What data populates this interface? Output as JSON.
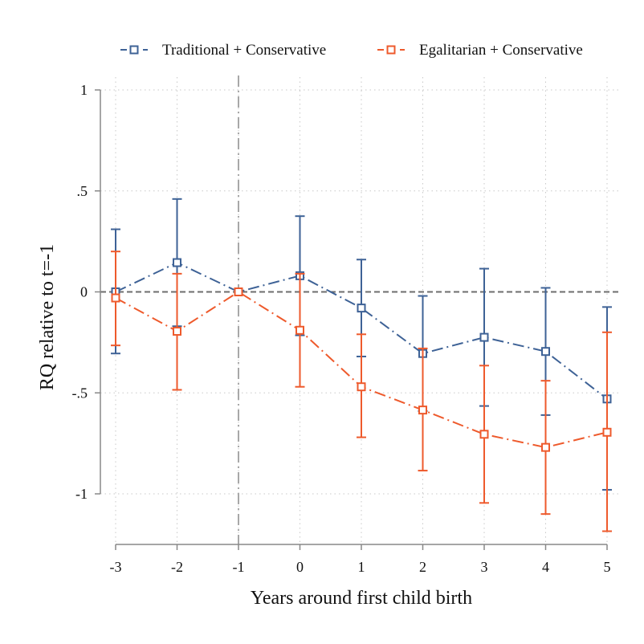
{
  "chart_data": {
    "type": "line",
    "title": "",
    "xlabel": "Years around first child birth",
    "ylabel": "RQ relative to t=-1",
    "x": [
      -3,
      -2,
      -1,
      0,
      1,
      2,
      3,
      4,
      5
    ],
    "x_tick_labels": [
      "-3",
      "-2",
      "-1",
      "0",
      "1",
      "2",
      "3",
      "4",
      "5"
    ],
    "y_ticks": [
      1,
      0.5,
      0,
      -0.5,
      -1
    ],
    "y_tick_labels": [
      "1",
      ".5",
      "0",
      "-.5",
      "-1"
    ],
    "xlim": [
      -3,
      5
    ],
    "ylim": [
      -1.25,
      1.0
    ],
    "grid": true,
    "reference_lines": {
      "vertical_x": -1,
      "horizontal_y": 0
    },
    "legend_position": "top",
    "series": [
      {
        "name": "Traditional + Conservative",
        "color": "#3e6296",
        "marker": "hollow-square",
        "line_style": "dash-dot",
        "values": [
          0.0,
          0.145,
          0.0,
          0.08,
          -0.08,
          -0.305,
          -0.225,
          -0.295,
          -0.53
        ],
        "ci_low": [
          -0.305,
          -0.17,
          0.0,
          -0.215,
          -0.32,
          -0.59,
          -0.565,
          -0.61,
          -0.98
        ],
        "ci_high": [
          0.31,
          0.46,
          0.0,
          0.375,
          0.16,
          -0.02,
          0.115,
          0.02,
          -0.075
        ]
      },
      {
        "name": "Egalitarian + Conservative",
        "color": "#ee5a2c",
        "marker": "hollow-square",
        "line_style": "dash-dot",
        "values": [
          -0.03,
          -0.195,
          0.0,
          -0.19,
          -0.47,
          -0.585,
          -0.705,
          -0.77,
          -0.695
        ],
        "ci_low": [
          -0.265,
          -0.485,
          0.0,
          -0.47,
          -0.72,
          -0.885,
          -1.045,
          -1.1,
          -1.185
        ],
        "ci_high": [
          0.2,
          0.09,
          0.0,
          0.09,
          -0.21,
          -0.28,
          -0.365,
          -0.44,
          -0.2
        ]
      }
    ]
  }
}
